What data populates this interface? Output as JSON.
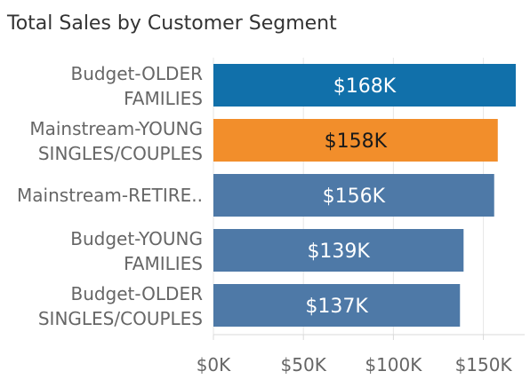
{
  "chart_data": {
    "type": "bar",
    "orientation": "horizontal",
    "title": "Total Sales by Customer Segment",
    "xlabel": "",
    "ylabel": "",
    "categories": [
      [
        "Budget-OLDER",
        "FAMILIES"
      ],
      [
        "Mainstream-YOUNG",
        "SINGLES/COUPLES"
      ],
      [
        "Mainstream-RETIRE.."
      ],
      [
        "Budget-YOUNG",
        "FAMILIES"
      ],
      [
        "Budget-OLDER",
        "SINGLES/COUPLES"
      ]
    ],
    "values": [
      168,
      158,
      156,
      139,
      137
    ],
    "data_labels": [
      "$168K",
      "$158K",
      "$156K",
      "$139K",
      "$137K"
    ],
    "value_unit": "thousands of dollars",
    "xlim": [
      0,
      168
    ],
    "xticks": [
      0,
      50,
      100,
      150
    ],
    "xtick_labels": [
      "$0K",
      "$50K",
      "$100K",
      "$150K"
    ],
    "grid": true,
    "colors": [
      "#1170aa",
      "#f28e2b",
      "#4e79a7",
      "#4e79a7",
      "#4e79a7"
    ],
    "label_colors": [
      "#ffffff",
      "#1a1a1a",
      "#ffffff",
      "#ffffff",
      "#ffffff"
    ]
  }
}
